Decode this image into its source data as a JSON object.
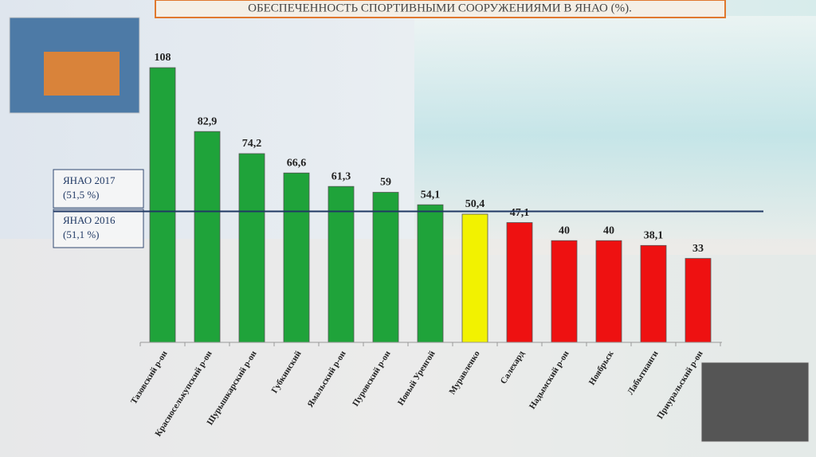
{
  "chart_data": {
    "type": "bar",
    "title": "ОБЕСПЕЧЕННОСТЬ СПОРТИВНЫМИ СООРУЖЕНИЯМИ В ЯНАО (%).",
    "categories": [
      "Тазовский р-он",
      "Красноселькупский р-он",
      "Шурышкарский р-он",
      "Губкинский",
      "Ямальский р-он",
      "Пуровский р-он",
      "Новый Уренгой",
      "Муравленко",
      "Салехард",
      "Надымский р-он",
      "Ноябрьск",
      "Лабытнанги",
      "Приуральский р-он"
    ],
    "values": [
      108,
      82.9,
      74.2,
      66.6,
      61.3,
      59,
      54.1,
      50.4,
      47.1,
      40,
      40,
      38.1,
      33
    ],
    "value_labels": [
      "108",
      "82,9",
      "74,2",
      "66,6",
      "61,3",
      "59",
      "54,1",
      "50,4",
      "47,1",
      "40",
      "40",
      "38,1",
      "33"
    ],
    "colors": [
      "#1fa33a",
      "#1fa33a",
      "#1fa33a",
      "#1fa33a",
      "#1fa33a",
      "#1fa33a",
      "#1fa33a",
      "#f2f200",
      "#ee1111",
      "#ee1111",
      "#ee1111",
      "#ee1111",
      "#ee1111"
    ],
    "reference_lines": [
      {
        "label": "ЯНАО 2017",
        "value": 51.5,
        "value_label": "(51,5 %)"
      },
      {
        "label": "ЯНАО 2016",
        "value": 51.1,
        "value_label": "(51,1 %)"
      }
    ]
  }
}
